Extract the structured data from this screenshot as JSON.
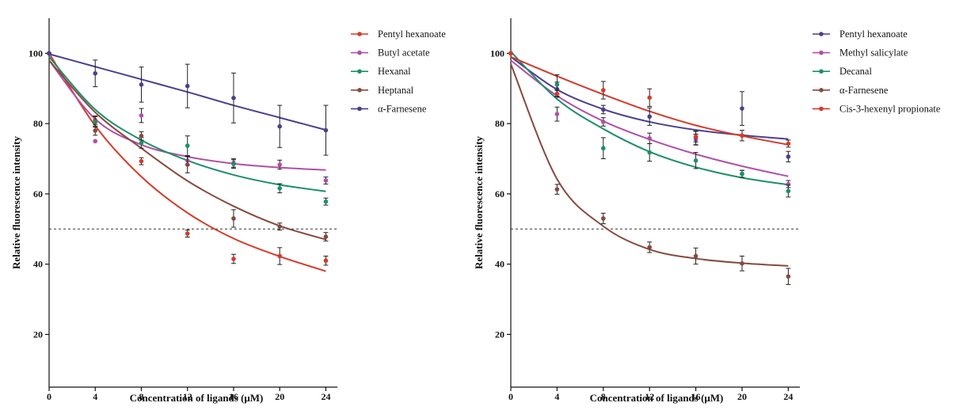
{
  "chart_data": [
    {
      "type": "scatter",
      "title": "",
      "xlabel": "Concentration of ligands (μM)",
      "ylabel": "Relative fluorescence intensity",
      "xlim": [
        0,
        25
      ],
      "ylim": [
        5,
        110
      ],
      "x_ticks": [
        "0",
        "4",
        "8",
        "12",
        "16",
        "20",
        "24"
      ],
      "y_ticks": [
        "20",
        "40",
        "60",
        "80",
        "100"
      ],
      "reference_line": 50,
      "legend_position": "right",
      "series": [
        {
          "name": "Pentyl hexanoate",
          "color": "#d63a2a",
          "x": [
            0,
            4,
            8,
            12,
            16,
            20,
            24
          ],
          "values": [
            100,
            81,
            69.3,
            48.7,
            41.5,
            42.3,
            41
          ],
          "errors": [
            0,
            1.2,
            1,
            1,
            1.3,
            2.4,
            1.3
          ],
          "fit": [
            100,
            79.4,
            64.9,
            54.6,
            47.3,
            42.2,
            38
          ]
        },
        {
          "name": "Butyl acetate",
          "color": "#b14fa6",
          "x": [
            0,
            4,
            8,
            12,
            16,
            20,
            24
          ],
          "values": [
            100,
            75,
            82.3,
            69.5,
            68.8,
            68.3,
            63.8
          ],
          "errors": [
            0,
            0,
            2,
            1.3,
            1.2,
            1.3,
            1
          ],
          "fit": [
            98,
            81.3,
            74,
            70.6,
            68.6,
            67.5,
            66.8
          ]
        },
        {
          "name": "Hexanal",
          "color": "#1d8f6c",
          "x": [
            0,
            4,
            8,
            12,
            16,
            20,
            24
          ],
          "values": [
            100,
            80.5,
            74.5,
            73.7,
            68.5,
            61.6,
            57.8
          ],
          "errors": [
            0,
            1.5,
            1.5,
            2.8,
            1.2,
            1.3,
            1
          ],
          "fit": [
            99,
            84,
            75.3,
            69.5,
            65.4,
            62.6,
            60.7
          ]
        },
        {
          "name": "Heptanal",
          "color": "#864a3f",
          "x": [
            0,
            4,
            8,
            12,
            16,
            20,
            24
          ],
          "values": [
            100,
            78,
            76.5,
            68.3,
            53,
            50.7,
            47.8
          ],
          "errors": [
            0,
            1.3,
            1.2,
            2.3,
            2.5,
            1,
            1.2
          ],
          "fit": [
            98,
            83.2,
            73,
            63.7,
            56.5,
            50.9,
            47
          ]
        },
        {
          "name": "α-Farnesene",
          "color": "#4b3f8e",
          "x": [
            0,
            4,
            8,
            12,
            16,
            20,
            24
          ],
          "values": [
            100,
            94.3,
            91.1,
            90.7,
            87.3,
            79.2,
            78.1
          ],
          "errors": [
            0,
            3.8,
            5,
            6.2,
            7.1,
            6,
            7.1
          ],
          "fit": [
            99.8,
            96.2,
            92.6,
            89,
            85.2,
            81.7,
            78.2
          ]
        }
      ]
    },
    {
      "type": "scatter",
      "title": "",
      "xlabel": "Concentration of ligands (μM)",
      "ylabel": "Relative fluorescence intensity",
      "xlim": [
        0,
        25
      ],
      "ylim": [
        5,
        110
      ],
      "x_ticks": [
        "0",
        "4",
        "8",
        "12",
        "16",
        "20",
        "24"
      ],
      "y_ticks": [
        "20",
        "40",
        "60",
        "80",
        "100"
      ],
      "reference_line": 50,
      "legend_position": "right",
      "series": [
        {
          "name": "Pentyl hexanoate",
          "color": "#4b3f8e",
          "x": [
            0,
            4,
            8,
            12,
            16,
            20,
            24
          ],
          "values": [
            100,
            89.8,
            84,
            82,
            75.9,
            84.3,
            70.6
          ],
          "errors": [
            0,
            2,
            1.2,
            2.5,
            2,
            4.8,
            1.5
          ],
          "fit": [
            99,
            89.7,
            84.1,
            80.5,
            78.2,
            76.7,
            75.6
          ]
        },
        {
          "name": "Methyl salicylate",
          "color": "#b14fa6",
          "x": [
            0,
            4,
            8,
            12,
            16,
            20,
            24
          ],
          "values": [
            100,
            82.7,
            80.5,
            75.8,
            75.5,
            65.7,
            62.8
          ],
          "errors": [
            0,
            2,
            1.2,
            1.5,
            1.5,
            1,
            1
          ],
          "fit": [
            98,
            87.9,
            80.7,
            75.5,
            71.3,
            67.9,
            65
          ]
        },
        {
          "name": "Decanal",
          "color": "#1d8f6c",
          "x": [
            0,
            4,
            8,
            12,
            16,
            20,
            24
          ],
          "values": [
            100,
            91.1,
            73,
            71.8,
            69.5,
            65.7,
            60.8
          ],
          "errors": [
            0,
            2.8,
            3,
            2.5,
            2.3,
            1,
            1.7
          ],
          "fit": [
            100.5,
            87,
            78.5,
            72,
            67.6,
            64.6,
            62.6
          ]
        },
        {
          "name": "α-Farnesene",
          "color": "#864a3f",
          "x": [
            0,
            4,
            8,
            12,
            16,
            20,
            24
          ],
          "values": [
            100,
            61.3,
            53,
            44.8,
            42.3,
            40.2,
            36.5
          ],
          "errors": [
            0,
            1.4,
            1.5,
            1.5,
            2.3,
            2.1,
            2.3
          ],
          "fit": [
            97,
            64.2,
            50.8,
            44.2,
            41.6,
            40.3,
            39.5
          ]
        },
        {
          "name": "Cis-3-hexenyl propionate",
          "color": "#d63a2a",
          "x": [
            0,
            4,
            8,
            12,
            16,
            20,
            24
          ],
          "values": [
            100,
            88.5,
            89.5,
            87.4,
            76.3,
            76.6,
            74.3
          ],
          "errors": [
            0,
            1,
            2.5,
            2.5,
            1.5,
            1.5,
            1
          ],
          "fit": [
            99,
            93.5,
            88.3,
            83.5,
            79.5,
            76.5,
            74
          ]
        }
      ]
    }
  ]
}
